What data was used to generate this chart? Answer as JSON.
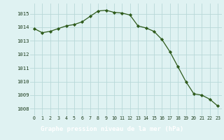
{
  "x": [
    0,
    1,
    2,
    3,
    4,
    5,
    6,
    7,
    8,
    9,
    10,
    11,
    12,
    13,
    14,
    15,
    16,
    17,
    18,
    19,
    20,
    21,
    22,
    23
  ],
  "y": [
    1013.9,
    1013.6,
    1013.7,
    1013.9,
    1014.1,
    1014.2,
    1014.4,
    1014.8,
    1015.2,
    1015.25,
    1015.1,
    1015.05,
    1014.9,
    1014.1,
    1013.95,
    1013.7,
    1013.1,
    1012.2,
    1011.1,
    1010.0,
    1009.1,
    1009.0,
    1008.7,
    1008.2
  ],
  "ylim": [
    1007.5,
    1015.75
  ],
  "yticks": [
    1008,
    1009,
    1010,
    1011,
    1012,
    1013,
    1014,
    1015
  ],
  "xlabel": "Graphe pression niveau de la mer (hPa)",
  "line_color": "#2d5a1b",
  "marker_color": "#2d5a1b",
  "bg_color": "#dff2f2",
  "grid_color": "#b8d8d8",
  "label_bar_color": "#3a7a2a",
  "label_text_color": "#ffffff",
  "tick_text_color": "#1a3a1a"
}
